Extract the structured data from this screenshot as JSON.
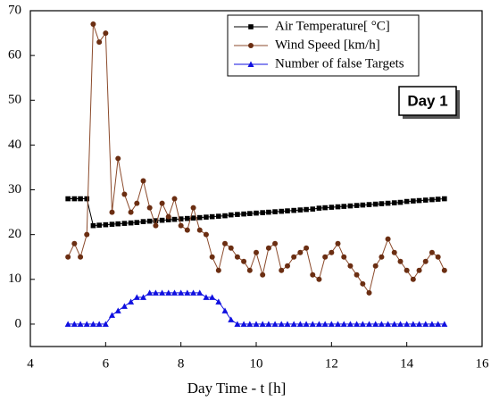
{
  "chart_data": {
    "type": "line",
    "x_label": "Day Time - t [h]",
    "annotation": "Day 1",
    "x": [
      5,
      5.17,
      5.33,
      5.5,
      5.67,
      5.83,
      6,
      6.17,
      6.33,
      6.5,
      6.67,
      6.83,
      7,
      7.17,
      7.33,
      7.5,
      7.67,
      7.83,
      8,
      8.17,
      8.33,
      8.5,
      8.67,
      8.83,
      9,
      9.17,
      9.33,
      9.5,
      9.67,
      9.83,
      10,
      10.17,
      10.33,
      10.5,
      10.67,
      10.83,
      11,
      11.17,
      11.33,
      11.5,
      11.67,
      11.83,
      12,
      12.17,
      12.33,
      12.5,
      12.67,
      12.83,
      13,
      13.17,
      13.33,
      13.5,
      13.67,
      13.83,
      14,
      14.17,
      14.33,
      14.5,
      14.67,
      14.83,
      15
    ],
    "series": [
      {
        "name": "Air Temperature[ °C]",
        "color": "#000000",
        "marker": "square",
        "values": [
          28,
          28,
          28,
          28,
          22.0,
          22.1,
          22.2,
          22.3,
          22.4,
          22.5,
          22.6,
          22.7,
          22.9,
          23.0,
          23.1,
          23.2,
          23.3,
          23.4,
          23.5,
          23.6,
          23.7,
          23.8,
          23.9,
          24.0,
          24.1,
          24.2,
          24.4,
          24.5,
          24.6,
          24.7,
          24.8,
          24.9,
          25.0,
          25.1,
          25.2,
          25.3,
          25.4,
          25.5,
          25.6,
          25.7,
          25.9,
          26.0,
          26.1,
          26.2,
          26.3,
          26.4,
          26.5,
          26.6,
          26.7,
          26.8,
          26.9,
          27.0,
          27.1,
          27.2,
          27.4,
          27.5,
          27.6,
          27.7,
          27.8,
          27.9,
          28.0
        ]
      },
      {
        "name": "Wind Speed [km/h]",
        "color": "#8b4a2b",
        "marker": "circle",
        "values": [
          15,
          18,
          15,
          20,
          67,
          63,
          65,
          25,
          37,
          29,
          25,
          27,
          32,
          26,
          22,
          27,
          24,
          28,
          22,
          21,
          26,
          21,
          20,
          15,
          12,
          18,
          17,
          15,
          14,
          12,
          16,
          11,
          17,
          18,
          12,
          13,
          15,
          16,
          17,
          11,
          10,
          15,
          16,
          18,
          15,
          13,
          11,
          9,
          7,
          13,
          15,
          19,
          16,
          14,
          12,
          10,
          12,
          14,
          16,
          15,
          12
        ]
      },
      {
        "name": "Number of false Targets",
        "color": "#1010e0",
        "marker": "triangle",
        "values": [
          0,
          0,
          0,
          0,
          0,
          0,
          0,
          2,
          3,
          4,
          5,
          6,
          6,
          7,
          7,
          7,
          7,
          7,
          7,
          7,
          7,
          7,
          6,
          6,
          5,
          3,
          1,
          0,
          0,
          0,
          0,
          0,
          0,
          0,
          0,
          0,
          0,
          0,
          0,
          0,
          0,
          0,
          0,
          0,
          0,
          0,
          0,
          0,
          0,
          0,
          0,
          0,
          0,
          0,
          0,
          0,
          0,
          0,
          0,
          0,
          0
        ]
      }
    ],
    "xlim": [
      4,
      16
    ],
    "xticks": [
      4,
      6,
      8,
      10,
      12,
      14,
      16
    ],
    "ylim": [
      -5,
      70
    ],
    "yticks": [
      0,
      10,
      20,
      30,
      40,
      50,
      60,
      70
    ],
    "legend": "upper right"
  }
}
